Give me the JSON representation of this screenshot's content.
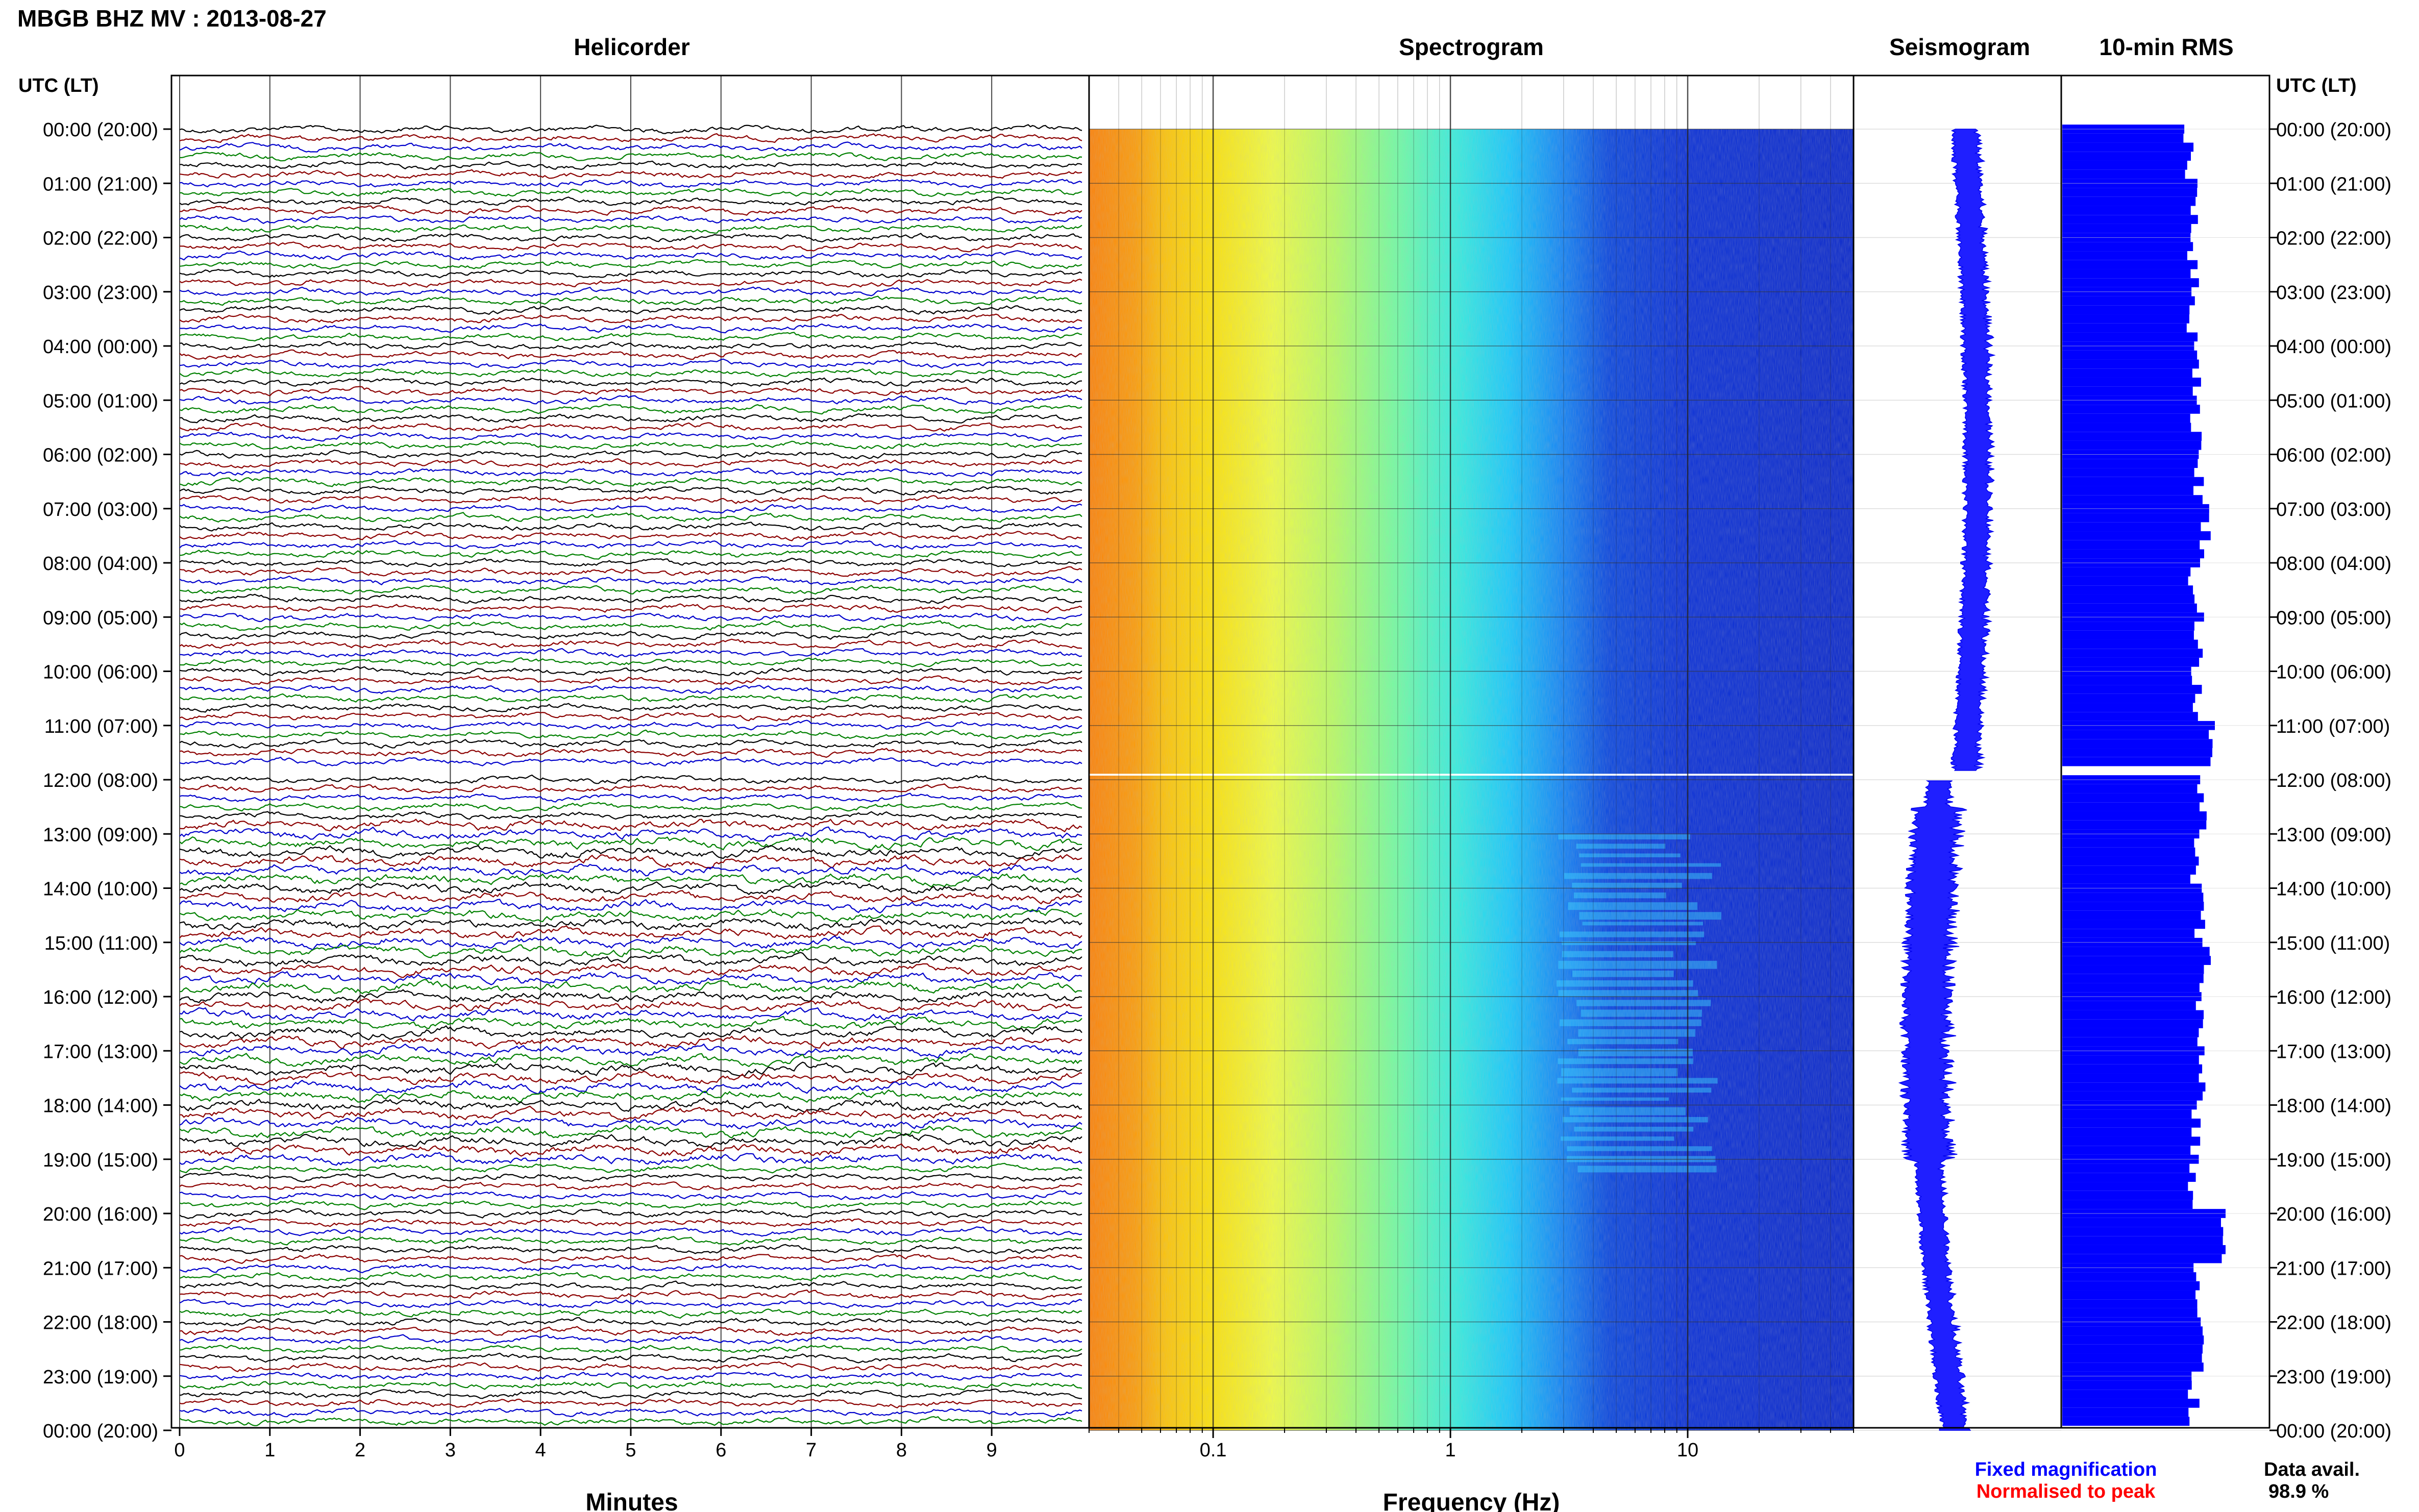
{
  "title": "MBGB BHZ MV : 2013-08-27",
  "panels": {
    "helicorder": "Helicorder",
    "spectrogram": "Spectrogram",
    "seismogram": "Seismogram",
    "rms": "10-min RMS"
  },
  "time_axis_label": "UTC (LT)",
  "time_labels": [
    "00:00 (20:00)",
    "01:00 (21:00)",
    "02:00 (22:00)",
    "03:00 (23:00)",
    "04:00 (00:00)",
    "05:00 (01:00)",
    "06:00 (02:00)",
    "07:00 (03:00)",
    "08:00 (04:00)",
    "09:00 (05:00)",
    "10:00 (06:00)",
    "11:00 (07:00)",
    "12:00 (08:00)",
    "13:00 (09:00)",
    "14:00 (10:00)",
    "15:00 (11:00)",
    "16:00 (12:00)",
    "17:00 (13:00)",
    "18:00 (14:00)",
    "19:00 (15:00)",
    "20:00 (16:00)",
    "21:00 (17:00)",
    "22:00 (18:00)",
    "23:00 (19:00)",
    "00:00 (20:00)"
  ],
  "helicorder_xlabel": "Minutes",
  "helicorder_ticks": [
    "0",
    "1",
    "2",
    "3",
    "4",
    "5",
    "6",
    "7",
    "8",
    "9"
  ],
  "spectrogram_xlabel": "Frequency (Hz)",
  "spectrogram_ticks": [
    "0.1",
    "1",
    "10"
  ],
  "legend": {
    "fixed": "Fixed magnification",
    "normalised": "Normalised to peak",
    "fixed_color": "#0000ff",
    "normalised_color": "#ff0000"
  },
  "data_avail": {
    "label": "Data avail.",
    "value": "98.9 %"
  },
  "trace_colors": [
    "#000000",
    "#8b0000",
    "#0000cc",
    "#008000"
  ],
  "chart_data": [
    {
      "type": "line",
      "name": "Helicorder",
      "xlabel": "Minutes",
      "xlim": [
        0,
        10
      ],
      "ylim": [
        "00:00",
        "24:00"
      ],
      "lines": 144,
      "minutes_per_line": 10,
      "gap_between": [
        "11:50",
        "12:00"
      ]
    },
    {
      "type": "heatmap",
      "name": "Spectrogram",
      "xlabel": "Frequency (Hz)",
      "xscale": "log",
      "xlim": [
        0.03,
        50
      ],
      "xticks": [
        0.1,
        1,
        10
      ],
      "gap_between": [
        "11:50",
        "12:00"
      ],
      "colormap": [
        "#ff8c00",
        "#ffd700",
        "#ffff66",
        "#66ff99",
        "#00e5ff",
        "#0080ff",
        "#0000cd"
      ]
    },
    {
      "type": "line",
      "name": "Seismogram",
      "gap_between": [
        "11:50",
        "12:00"
      ]
    },
    {
      "type": "bar",
      "name": "10-min RMS",
      "orientation": "horizontal",
      "bins": 144,
      "bin_minutes": 10,
      "xlim": [
        0,
        1
      ],
      "hourly_relative_rms": [
        0.78,
        0.82,
        0.8,
        0.8,
        0.83,
        0.82,
        0.84,
        0.88,
        0.81,
        0.84,
        0.82,
        0.9,
        0.86,
        0.81,
        0.84,
        0.88,
        0.84,
        0.86,
        0.82,
        0.8,
        0.98,
        0.82,
        0.84,
        0.8
      ],
      "color": "#0000ff"
    }
  ]
}
